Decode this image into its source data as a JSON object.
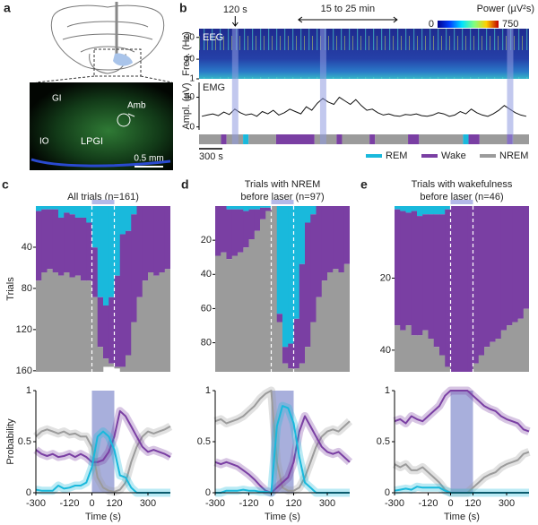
{
  "panel_a": {
    "label": "a",
    "regions": [
      "GI",
      "Amb",
      "IO",
      "LPGI"
    ],
    "scale_bar": "0.5 mm"
  },
  "chart_data": [
    {
      "type": "recording",
      "label": "b",
      "annotations": [
        "120 s",
        "15 to 25 min"
      ],
      "eeg": {
        "title": "EEG",
        "ylabel": "Freq. (Hz)",
        "ylim": [
          1,
          24
        ],
        "yticks": [
          1,
          10,
          20
        ]
      },
      "colorbar": {
        "title": "Power (µV²s)",
        "lim": [
          0,
          750
        ],
        "ticks": [
          0,
          750
        ]
      },
      "emg": {
        "title": "EMG",
        "ylabel": "Ampl. (µV)",
        "ylim": [
          -5,
          75
        ],
        "yticks": [
          0,
          50
        ],
        "values": [
          18,
          20,
          22,
          19,
          25,
          21,
          30,
          24,
          20,
          22,
          18,
          26,
          22,
          28,
          20,
          24,
          30,
          26,
          22,
          34,
          28,
          40,
          48,
          42,
          38,
          50,
          44,
          38,
          46,
          36,
          28,
          30,
          24,
          20,
          22,
          19,
          18,
          21,
          20,
          22,
          19,
          18,
          20,
          24,
          22,
          18,
          20,
          26,
          22,
          30,
          24,
          20,
          18,
          22,
          28,
          36,
          30,
          24,
          20,
          18
        ]
      },
      "hypnogram": {
        "states": [
          2,
          1,
          2,
          0,
          2,
          1,
          2,
          1,
          2,
          1,
          2,
          1,
          2,
          0,
          1,
          2,
          1,
          2
        ],
        "durations": [
          4,
          1,
          3,
          1,
          5,
          7,
          4,
          1,
          5,
          1,
          6,
          2,
          8,
          1,
          2,
          5,
          1,
          3
        ]
      },
      "laser_onsets": [
        6,
        22,
        56
      ],
      "scale_bar": "300 s",
      "series": [
        {
          "name": "REM",
          "color": "#19b9dc"
        },
        {
          "name": "Wake",
          "color": "#7a3fa3"
        },
        {
          "name": "NREM",
          "color": "#9b9b9b"
        }
      ]
    },
    {
      "type": "state-probability",
      "label": "c",
      "title": [
        "All trials (n=161)"
      ],
      "x": [
        -300,
        -270,
        -240,
        -210,
        -180,
        -150,
        -120,
        -90,
        -60,
        -30,
        0,
        30,
        60,
        90,
        120,
        150,
        180,
        210,
        240,
        270,
        300,
        330,
        360,
        390,
        420
      ],
      "xlim": [
        -300,
        420
      ],
      "xticks": [
        -300,
        -120,
        0,
        120,
        300
      ],
      "xlabel": "Time (s)",
      "ylim": [
        0,
        1
      ],
      "yticks": [
        0,
        0.5,
        1
      ],
      "ylabel": "Probability",
      "laser_window": [
        0,
        120
      ],
      "raster": {
        "ylabel": "Trials",
        "ylim": [
          0,
          161
        ],
        "yticks": [
          40,
          80,
          120,
          160
        ]
      },
      "series": [
        {
          "color": "#19b9dc",
          "values": [
            0.03,
            0.02,
            0.02,
            0.02,
            0.07,
            0.04,
            0.05,
            0.07,
            0.07,
            0.1,
            0.25,
            0.55,
            0.6,
            0.55,
            0.42,
            0.17,
            0.15,
            0.05,
            0,
            0,
            0,
            0,
            0,
            0,
            0
          ]
        },
        {
          "color": "#7a3fa3",
          "values": [
            0.42,
            0.38,
            0.36,
            0.38,
            0.35,
            0.36,
            0.38,
            0.35,
            0.38,
            0.35,
            0.3,
            0.3,
            0.32,
            0.4,
            0.55,
            0.8,
            0.75,
            0.65,
            0.55,
            0.45,
            0.4,
            0.42,
            0.4,
            0.38,
            0.35
          ]
        },
        {
          "color": "#9b9b9b",
          "values": [
            0.55,
            0.6,
            0.62,
            0.6,
            0.58,
            0.6,
            0.57,
            0.58,
            0.55,
            0.55,
            0.45,
            0.15,
            0.05,
            0.02,
            0.01,
            0.03,
            0.1,
            0.3,
            0.45,
            0.55,
            0.6,
            0.58,
            0.6,
            0.62,
            0.65
          ]
        }
      ]
    },
    {
      "type": "state-probability",
      "label": "d",
      "title": [
        "Trials with NREM",
        "before laser (n=97)"
      ],
      "x": [
        -300,
        -270,
        -240,
        -210,
        -180,
        -150,
        -120,
        -90,
        -60,
        -30,
        0,
        30,
        60,
        90,
        120,
        150,
        180,
        210,
        240,
        270,
        300,
        330,
        360,
        390,
        420
      ],
      "xlim": [
        -300,
        420
      ],
      "xticks": [
        -300,
        -120,
        0,
        120,
        300
      ],
      "xlabel": "Time (s)",
      "ylim": [
        0,
        1
      ],
      "yticks": [
        0,
        0.5,
        1
      ],
      "laser_window": [
        0,
        120
      ],
      "raster": {
        "ylim": [
          0,
          97
        ],
        "yticks": [
          20,
          40,
          60,
          80
        ]
      },
      "series": [
        {
          "color": "#19b9dc",
          "values": [
            0,
            0,
            0.02,
            0.02,
            0.02,
            0.03,
            0.02,
            0.02,
            0.01,
            0.01,
            0,
            0.65,
            0.85,
            0.83,
            0.68,
            0.35,
            0.1,
            0.05,
            0,
            0,
            0,
            0,
            0,
            0,
            0
          ]
        },
        {
          "color": "#7a3fa3",
          "values": [
            0.3,
            0.28,
            0.3,
            0.28,
            0.26,
            0.22,
            0.18,
            0.13,
            0.07,
            0.02,
            0,
            0.05,
            0.1,
            0.15,
            0.3,
            0.6,
            0.75,
            0.65,
            0.55,
            0.45,
            0.4,
            0.38,
            0.4,
            0.35,
            0.3
          ]
        },
        {
          "color": "#9b9b9b",
          "values": [
            0.7,
            0.72,
            0.68,
            0.7,
            0.72,
            0.75,
            0.8,
            0.85,
            0.92,
            0.97,
            1,
            0.3,
            0.05,
            0.02,
            0.02,
            0.05,
            0.15,
            0.3,
            0.45,
            0.55,
            0.6,
            0.62,
            0.6,
            0.65,
            0.7
          ]
        }
      ]
    },
    {
      "type": "state-probability",
      "label": "e",
      "title": [
        "Trials with wakefulness",
        "before laser (n=46)"
      ],
      "x": [
        -300,
        -270,
        -240,
        -210,
        -180,
        -150,
        -120,
        -90,
        -60,
        -30,
        0,
        30,
        60,
        90,
        120,
        150,
        180,
        210,
        240,
        270,
        300,
        330,
        360,
        390,
        420
      ],
      "xlim": [
        -300,
        420
      ],
      "xticks": [
        -300,
        -120,
        0,
        120,
        300
      ],
      "xlabel": "Time (s)",
      "ylim": [
        0,
        1
      ],
      "yticks": [
        0,
        0.5,
        1
      ],
      "laser_window": [
        0,
        120
      ],
      "raster": {
        "ylim": [
          0,
          46
        ],
        "yticks": [
          20,
          40
        ]
      },
      "series": [
        {
          "color": "#19b9dc",
          "values": [
            0.02,
            0.03,
            0.04,
            0.03,
            0.06,
            0.05,
            0.05,
            0.05,
            0.05,
            0.02,
            0,
            0,
            0,
            0,
            0,
            0,
            0,
            0,
            0,
            0,
            0,
            0,
            0,
            0,
            0
          ]
        },
        {
          "color": "#7a3fa3",
          "values": [
            0.7,
            0.72,
            0.68,
            0.75,
            0.72,
            0.7,
            0.75,
            0.8,
            0.85,
            0.95,
            1,
            1,
            1,
            1,
            0.95,
            0.9,
            0.85,
            0.82,
            0.8,
            0.75,
            0.72,
            0.7,
            0.68,
            0.62,
            0.6
          ]
        },
        {
          "color": "#9b9b9b",
          "values": [
            0.28,
            0.25,
            0.28,
            0.22,
            0.22,
            0.25,
            0.2,
            0.15,
            0.1,
            0.03,
            0,
            0,
            0,
            0,
            0.05,
            0.1,
            0.15,
            0.18,
            0.2,
            0.25,
            0.28,
            0.3,
            0.32,
            0.38,
            0.4
          ]
        }
      ]
    }
  ]
}
